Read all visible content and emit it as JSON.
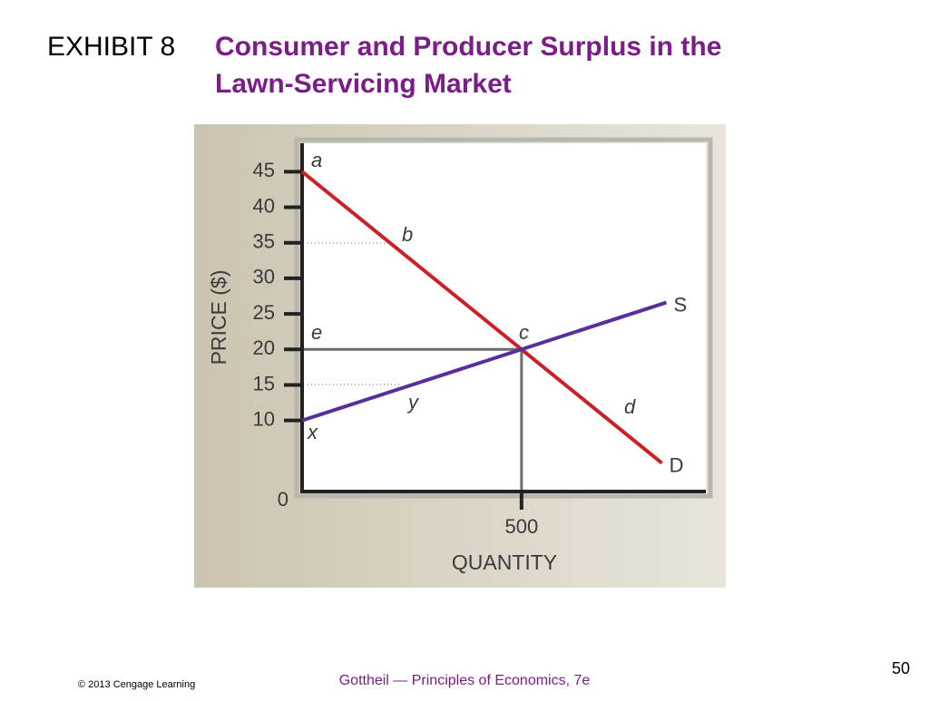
{
  "header": {
    "exhibit": "EXHIBIT 8",
    "title_lines": [
      "Consumer and Producer Surplus in the",
      "Lawn-Servicing Market"
    ]
  },
  "chart_data": {
    "type": "line",
    "y_label": "PRICE ($)",
    "x_label": "QUANTITY",
    "xlim": [
      0,
      920
    ],
    "xticks": [
      500
    ],
    "ylim": [
      0,
      49
    ],
    "yticks": [
      0,
      10,
      15,
      20,
      25,
      30,
      35,
      40,
      45
    ],
    "series": [
      {
        "name": "D",
        "color": "#cc2027",
        "x": [
          0,
          500,
          820
        ],
        "values": [
          45,
          20,
          4
        ]
      },
      {
        "name": "S",
        "color": "#5a2d9c",
        "x": [
          0,
          500,
          830
        ],
        "values": [
          10,
          20,
          26.6
        ]
      }
    ],
    "annotations": [
      "a",
      "b",
      "c",
      "d",
      "e",
      "x",
      "y"
    ]
  },
  "footer": {
    "copyright": "© 2013 Cengage Learning",
    "source": "Gottheil — Principles of Economics, 7e",
    "page_number": 50
  }
}
